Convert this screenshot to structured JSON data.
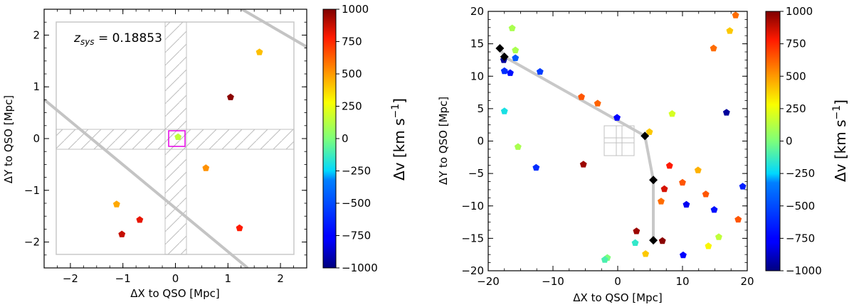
{
  "chart_data": [
    {
      "type": "scatter",
      "panel": "left",
      "xlabel": "ΔX to QSO [Mpc]",
      "ylabel": "ΔY to QSO [Mpc]",
      "xlim": [
        -2.5,
        2.5
      ],
      "ylim": [
        -2.5,
        2.5
      ],
      "xticks": [
        "−2",
        "−1",
        "0",
        "1",
        "2"
      ],
      "yticks": [
        "−2",
        "−1",
        "0",
        "1",
        "2"
      ],
      "annotation_prefix": "z",
      "annotation_sub": "sys",
      "annotation_suffix": " = 0.18853",
      "colorbar": {
        "label": "Δv [km s",
        "label_sup": "−1",
        "label_end": "]",
        "range": [
          -1000,
          1000
        ],
        "ticks": [
          "1000",
          "750",
          "500",
          "250",
          "0",
          "−250",
          "−500",
          "−750",
          "−1000"
        ]
      },
      "points": [
        {
          "x": 0.05,
          "y": 0.03,
          "dv": 150
        },
        {
          "x": 1.6,
          "y": 1.67,
          "dv": 420
        },
        {
          "x": 1.05,
          "y": 0.8,
          "dv": 980
        },
        {
          "x": 0.58,
          "y": -0.57,
          "dv": 520
        },
        {
          "x": -1.12,
          "y": -1.27,
          "dv": 470
        },
        {
          "x": -0.68,
          "y": -1.57,
          "dv": 820
        },
        {
          "x": -1.02,
          "y": -1.85,
          "dv": 880
        },
        {
          "x": 1.22,
          "y": -1.73,
          "dv": 780
        }
      ]
    },
    {
      "type": "scatter",
      "panel": "right",
      "xlabel": "ΔX to QSO [Mpc]",
      "ylabel": "ΔY to QSO [Mpc]",
      "xlim": [
        -20,
        20
      ],
      "ylim": [
        -20,
        20
      ],
      "xticks": [
        "−20",
        "−10",
        "0",
        "10",
        "20"
      ],
      "yticks": [
        "−20",
        "−15",
        "−10",
        "−5",
        "0",
        "5",
        "10",
        "15",
        "20"
      ],
      "colorbar": {
        "label": "Δv [km s",
        "label_sup": "−1",
        "label_end": "]",
        "range": [
          -1000,
          1000
        ],
        "ticks": [
          "1000",
          "750",
          "500",
          "250",
          "0",
          "−250",
          "−500",
          "−750",
          "−1000"
        ]
      },
      "path_markers": [
        {
          "x": -18.2,
          "y": 14.3
        },
        {
          "x": -17.5,
          "y": 13.0
        },
        {
          "x": 4.2,
          "y": 0.8
        },
        {
          "x": 5.5,
          "y": -6.0
        },
        {
          "x": 5.5,
          "y": -15.3
        }
      ],
      "points": [
        {
          "x": -16.3,
          "y": 17.4,
          "dv": 100
        },
        {
          "x": -15.8,
          "y": 14.0,
          "dv": 100
        },
        {
          "x": -17.6,
          "y": 12.5,
          "dv": -950
        },
        {
          "x": -17.5,
          "y": 10.8,
          "dv": -600
        },
        {
          "x": -16.6,
          "y": 10.5,
          "dv": -700
        },
        {
          "x": -15.8,
          "y": 12.8,
          "dv": -450
        },
        {
          "x": -12.0,
          "y": 10.7,
          "dv": -550
        },
        {
          "x": -5.6,
          "y": 6.8,
          "dv": 650
        },
        {
          "x": -3.1,
          "y": 5.8,
          "dv": 620
        },
        {
          "x": -0.1,
          "y": 3.6,
          "dv": -750
        },
        {
          "x": 4.9,
          "y": 1.4,
          "dv": 400
        },
        {
          "x": -17.5,
          "y": 4.6,
          "dv": -200
        },
        {
          "x": -15.4,
          "y": -0.9,
          "dv": 100
        },
        {
          "x": -12.6,
          "y": -4.1,
          "dv": -600
        },
        {
          "x": -5.3,
          "y": -3.6,
          "dv": 950
        },
        {
          "x": 8.4,
          "y": 4.2,
          "dv": 200
        },
        {
          "x": 16.8,
          "y": 4.4,
          "dv": -950
        },
        {
          "x": 14.8,
          "y": 14.3,
          "dv": 600
        },
        {
          "x": 17.3,
          "y": 17.0,
          "dv": 400
        },
        {
          "x": 18.2,
          "y": 19.4,
          "dv": 600
        },
        {
          "x": 8.0,
          "y": -3.8,
          "dv": 780
        },
        {
          "x": 12.4,
          "y": -4.5,
          "dv": 450
        },
        {
          "x": 19.3,
          "y": -7.0,
          "dv": -650
        },
        {
          "x": 10.0,
          "y": -6.4,
          "dv": 650
        },
        {
          "x": 7.2,
          "y": -7.4,
          "dv": 850
        },
        {
          "x": 10.6,
          "y": -9.8,
          "dv": -800
        },
        {
          "x": 6.7,
          "y": -9.3,
          "dv": 600
        },
        {
          "x": 13.6,
          "y": -8.2,
          "dv": 650
        },
        {
          "x": 14.9,
          "y": -10.6,
          "dv": -700
        },
        {
          "x": 18.6,
          "y": -12.1,
          "dv": 650
        },
        {
          "x": 2.9,
          "y": -13.9,
          "dv": 950
        },
        {
          "x": 2.7,
          "y": -15.7,
          "dv": -150
        },
        {
          "x": 6.9,
          "y": -15.4,
          "dv": 980
        },
        {
          "x": 15.6,
          "y": -14.8,
          "dv": 150
        },
        {
          "x": 14.0,
          "y": -16.2,
          "dv": 300
        },
        {
          "x": 10.1,
          "y": -17.6,
          "dv": -750
        },
        {
          "x": 4.3,
          "y": -17.4,
          "dv": 400
        },
        {
          "x": -1.6,
          "y": -18.0,
          "dv": 0
        },
        {
          "x": -2.0,
          "y": -18.3,
          "dv": -100
        }
      ]
    }
  ]
}
